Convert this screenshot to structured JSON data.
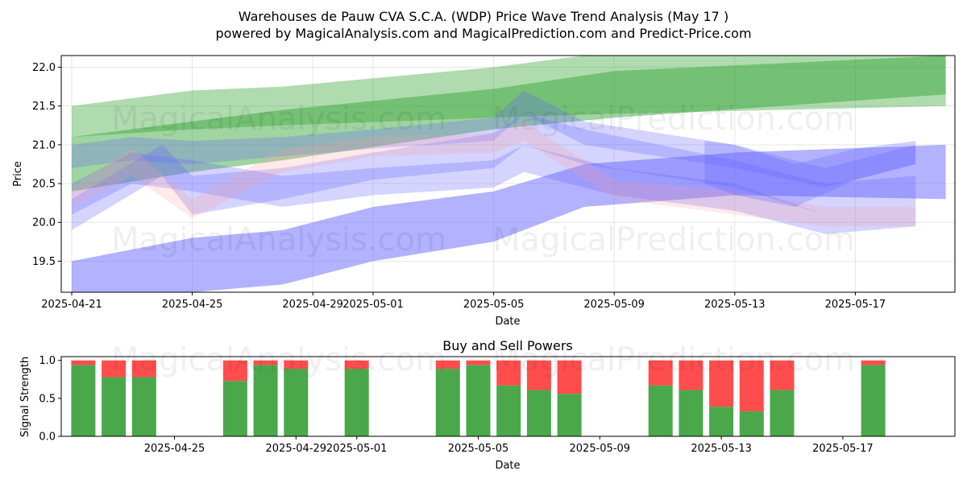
{
  "header": {
    "title_line1": "Warehouses de Pauw CVA S.C.A. (WDP) Price Wave Trend Analysis (May 17 )",
    "title_line2": "powered by MagicalAnalysis.com and MagicalPrediction.com and Predict-Price.com"
  },
  "watermarks": {
    "a": "MagicalAnalysis.com",
    "b": "MagicalPrediction.com"
  },
  "chart_data": [
    {
      "type": "area",
      "title": "",
      "xlabel": "Date",
      "ylabel": "Price",
      "ylim": [
        19.1,
        22.15
      ],
      "xlim": [
        "2025-04-21",
        "2025-05-20"
      ],
      "x_ticks": [
        "2025-04-21",
        "2025-04-25",
        "2025-04-29",
        "2025-05-01",
        "2025-05-05",
        "2025-05-09",
        "2025-05-13",
        "2025-05-17"
      ],
      "y_ticks": [
        19.5,
        20.0,
        20.5,
        21.0,
        21.5,
        22.0
      ],
      "grid": true,
      "colors": {
        "green": "#2ca02c",
        "blue": "#6666ff",
        "red": "#ff9999"
      },
      "series": [
        {
          "color": "green",
          "opacity": 0.38,
          "dates": [
            "2025-04-21",
            "2025-04-25",
            "2025-04-28",
            "2025-05-05",
            "2025-05-09",
            "2025-05-20"
          ],
          "upper": [
            21.5,
            21.7,
            21.75,
            22.0,
            22.2,
            22.3
          ],
          "lower": [
            21.1,
            21.2,
            21.25,
            21.35,
            21.4,
            21.5
          ]
        },
        {
          "color": "green",
          "opacity": 0.45,
          "dates": [
            "2025-04-21",
            "2025-04-25",
            "2025-04-28",
            "2025-05-05",
            "2025-05-09",
            "2025-05-20"
          ],
          "upper": [
            21.1,
            21.3,
            21.45,
            21.72,
            21.95,
            22.15
          ],
          "lower": [
            20.4,
            20.65,
            20.8,
            21.2,
            21.35,
            21.65
          ]
        },
        {
          "color": "blue",
          "opacity": 0.5,
          "dates": [
            "2025-04-21",
            "2025-04-25",
            "2025-04-28",
            "2025-05-01",
            "2025-05-05",
            "2025-05-08",
            "2025-05-13",
            "2025-05-20"
          ],
          "upper": [
            19.5,
            19.8,
            19.9,
            20.2,
            20.4,
            20.75,
            20.9,
            21.0
          ],
          "lower": [
            18.9,
            19.1,
            19.2,
            19.5,
            19.75,
            20.2,
            20.35,
            20.3
          ]
        },
        {
          "color": "blue",
          "opacity": 0.28,
          "dates": [
            "2025-04-21",
            "2025-04-24",
            "2025-04-25",
            "2025-04-28",
            "2025-05-01",
            "2025-05-05",
            "2025-05-06",
            "2025-05-08",
            "2025-05-13",
            "2025-05-16",
            "2025-05-19"
          ],
          "upper": [
            20.3,
            21.0,
            20.6,
            20.7,
            20.9,
            21.15,
            21.4,
            21.2,
            20.8,
            20.5,
            20.6
          ],
          "lower": [
            19.9,
            20.6,
            20.1,
            20.3,
            20.55,
            20.7,
            21.0,
            20.75,
            20.45,
            20.1,
            20.2
          ]
        },
        {
          "color": "blue",
          "opacity": 0.28,
          "dates": [
            "2025-04-21",
            "2025-04-23",
            "2025-04-25",
            "2025-04-28",
            "2025-05-01",
            "2025-05-05",
            "2025-05-06",
            "2025-05-08",
            "2025-05-13",
            "2025-05-16",
            "2025-05-19"
          ],
          "upper": [
            21.0,
            21.1,
            21.05,
            21.1,
            21.2,
            21.35,
            21.7,
            21.3,
            21.0,
            20.7,
            21.0
          ],
          "lower": [
            20.7,
            20.8,
            20.75,
            20.85,
            20.95,
            21.05,
            21.4,
            21.0,
            20.7,
            20.45,
            20.75
          ]
        },
        {
          "color": "blue",
          "opacity": 0.28,
          "dates": [
            "2025-04-21",
            "2025-04-23",
            "2025-04-25",
            "2025-04-28",
            "2025-05-01",
            "2025-05-05",
            "2025-05-06",
            "2025-05-09",
            "2025-05-13",
            "2025-05-16",
            "2025-05-19"
          ],
          "upper": [
            20.5,
            20.9,
            20.8,
            20.6,
            20.7,
            20.8,
            21.0,
            20.7,
            20.5,
            20.1,
            20.2
          ],
          "lower": [
            20.1,
            20.5,
            20.4,
            20.2,
            20.35,
            20.45,
            20.65,
            20.35,
            20.15,
            19.85,
            19.95
          ]
        },
        {
          "color": "red",
          "opacity": 0.22,
          "dates": [
            "2025-04-21",
            "2025-04-23",
            "2025-04-25",
            "2025-04-28",
            "2025-05-01",
            "2025-05-05",
            "2025-05-06",
            "2025-05-09",
            "2025-05-13",
            "2025-05-16",
            "2025-05-19"
          ],
          "upper": [
            20.45,
            20.95,
            20.3,
            20.95,
            21.1,
            21.15,
            21.3,
            20.55,
            20.4,
            20.2,
            20.2
          ],
          "lower": [
            20.2,
            20.6,
            20.05,
            20.65,
            20.85,
            20.9,
            21.05,
            20.3,
            20.1,
            19.95,
            19.95
          ]
        },
        {
          "color": "blue",
          "opacity": 0.28,
          "dates": [
            "2025-05-12",
            "2025-05-13",
            "2025-05-15",
            "2025-05-17",
            "2025-05-19"
          ],
          "upper": [
            21.05,
            21.0,
            20.75,
            20.95,
            21.05
          ],
          "lower": [
            20.5,
            20.35,
            20.2,
            20.55,
            20.75
          ]
        }
      ]
    },
    {
      "type": "bar",
      "title": "Buy and Sell Powers",
      "xlabel": "Date",
      "ylabel": "Signal Strength",
      "ylim": [
        0,
        1.05
      ],
      "x_ticks": [
        "2025-04-25",
        "2025-04-29",
        "2025-05-01",
        "2025-05-05",
        "2025-05-09",
        "2025-05-13",
        "2025-05-17"
      ],
      "y_ticks": [
        "0.0",
        "0.5",
        "1.0"
      ],
      "colors": {
        "buy": "#4aa84a",
        "sell": "#ff4d4d"
      },
      "dates": [
        "2025-04-22",
        "2025-04-23",
        "2025-04-24",
        "2025-04-27",
        "2025-04-28",
        "2025-04-29",
        "2025-05-01",
        "2025-05-04",
        "2025-05-05",
        "2025-05-06",
        "2025-05-07",
        "2025-05-08",
        "2025-05-11",
        "2025-05-12",
        "2025-05-13",
        "2025-05-14",
        "2025-05-15",
        "2025-05-18"
      ],
      "buy": [
        0.94,
        0.78,
        0.78,
        0.73,
        0.94,
        0.89,
        0.89,
        0.89,
        0.94,
        0.67,
        0.61,
        0.56,
        0.67,
        0.61,
        0.39,
        0.33,
        0.61,
        0.94
      ],
      "sell": [
        0.06,
        0.22,
        0.22,
        0.27,
        0.06,
        0.11,
        0.11,
        0.11,
        0.06,
        0.33,
        0.39,
        0.44,
        0.33,
        0.39,
        0.61,
        0.67,
        0.39,
        0.06
      ]
    }
  ]
}
